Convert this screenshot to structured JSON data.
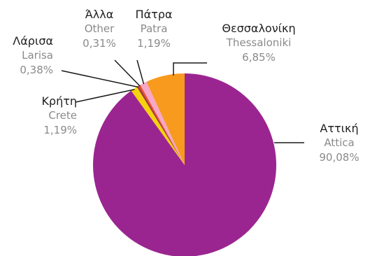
{
  "chart_data": {
    "type": "pie",
    "slices": [
      {
        "greek": "Αττική",
        "latin": "Attica",
        "pct_label": "90,08%",
        "value": 90.08,
        "color": "#9b2590"
      },
      {
        "greek": "Κρήτη",
        "latin": "Crete",
        "pct_label": "1,19%",
        "value": 1.19,
        "color": "#f5d20c"
      },
      {
        "greek": "Λάρισα",
        "latin": "Larisa",
        "pct_label": "0,38%",
        "value": 0.38,
        "color": "#a23a3f"
      },
      {
        "greek": "Άλλα",
        "latin": "Other",
        "pct_label": "0,31%",
        "value": 0.31,
        "color": "#ef4f2a"
      },
      {
        "greek": "Πάτρα",
        "latin": "Patra",
        "pct_label": "1,19%",
        "value": 1.19,
        "color": "#f7a7c8"
      },
      {
        "greek": "Θεσσαλονίκη",
        "latin": "Thessaloniki",
        "pct_label": "6,85%",
        "value": 6.85,
        "color": "#f79a1e"
      }
    ]
  }
}
